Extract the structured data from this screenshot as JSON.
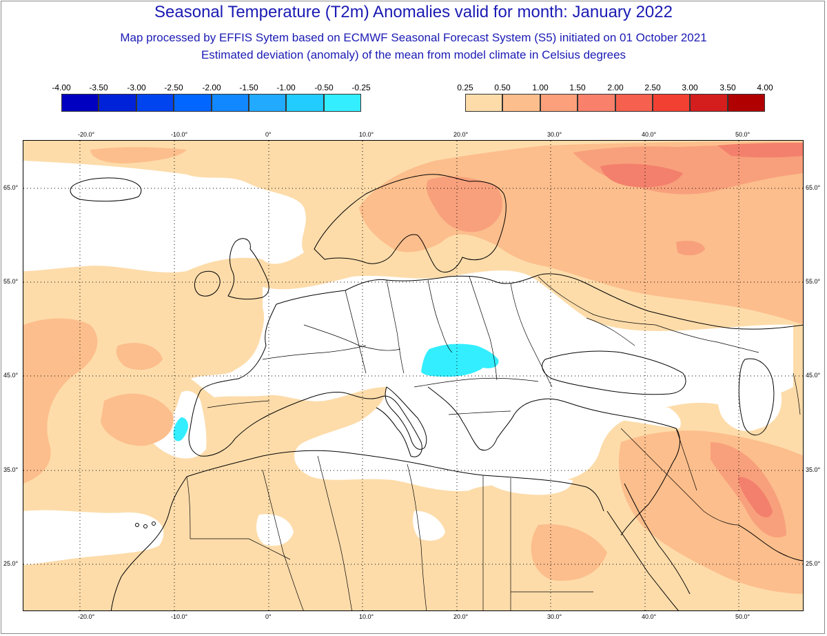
{
  "title": "Seasonal Temperature (T2m) Anomalies valid for month: January 2022",
  "subtitle1": "Map processed by EFFIS Sytem based on ECMWF Seasonal Forecast System (S5) initiated on 01 October 2021",
  "subtitle2": "Estimated deviation (anomaly) of the mean from model climate in Celsius degrees",
  "legend": {
    "cold": {
      "labels": [
        "-4.00",
        "-3.50",
        "-3.00",
        "-2.50",
        "-2.00",
        "-1.50",
        "-1.00",
        "-0.50",
        "-0.25"
      ],
      "colors": [
        "#0000c0",
        "#0022d8",
        "#0044f0",
        "#0066ff",
        "#1188ff",
        "#22aaff",
        "#22ccff",
        "#33eeff"
      ]
    },
    "warm": {
      "labels": [
        "0.25",
        "0.50",
        "1.00",
        "1.50",
        "2.00",
        "2.50",
        "3.00",
        "3.50",
        "4.00"
      ],
      "colors": [
        "#fddcaa",
        "#fcbe8c",
        "#fba07a",
        "#f9806a",
        "#f6604e",
        "#f24033",
        "#d41e1e",
        "#b00000"
      ]
    }
  },
  "axes": {
    "lon": [
      "-20.0°",
      "-10.0°",
      "0°",
      "10.0°",
      "20.0°",
      "30.0°",
      "40.0°",
      "50.0°"
    ],
    "lat": [
      "65.0°",
      "55.0°",
      "45.0°",
      "35.0°",
      "25.0°"
    ]
  },
  "colors": {
    "title": "#1a1ab4",
    "anomaly_0_25_0_5": "#fddcaa",
    "anomaly_0_5_1_0": "#fcbe8c",
    "anomaly_1_0_1_5": "#f8a07c",
    "anomaly_1_5_2_0": "#f3806c",
    "anomaly_neg_0_5_neg_0_25": "#33eeff"
  }
}
